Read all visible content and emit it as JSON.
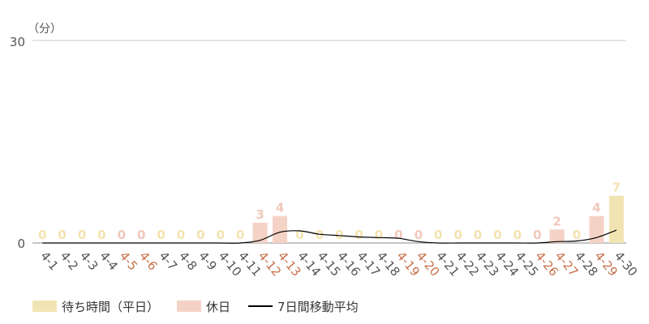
{
  "chart_data": {
    "type": "bar",
    "unit_label": "（分）",
    "ylim": [
      0,
      30
    ],
    "y_ticks": [
      "0",
      "30"
    ],
    "categories": [
      "4-1",
      "4-2",
      "4-3",
      "4-4",
      "4-5",
      "4-6",
      "4-7",
      "4-8",
      "4-9",
      "4-10",
      "4-11",
      "4-12",
      "4-13",
      "4-14",
      "4-15",
      "4-16",
      "4-17",
      "4-18",
      "4-19",
      "4-20",
      "4-21",
      "4-22",
      "4-23",
      "4-24",
      "4-25",
      "4-26",
      "4-27",
      "4-28",
      "4-29",
      "4-30"
    ],
    "holiday": [
      false,
      false,
      false,
      false,
      true,
      true,
      false,
      false,
      false,
      false,
      false,
      true,
      true,
      false,
      false,
      false,
      false,
      false,
      true,
      true,
      false,
      false,
      false,
      false,
      false,
      true,
      true,
      false,
      true,
      false
    ],
    "values": [
      0,
      0,
      0,
      0,
      0,
      0,
      0,
      0,
      0,
      0,
      0,
      3,
      4,
      0,
      0,
      0,
      0,
      0,
      0,
      0,
      0,
      0,
      0,
      0,
      0,
      0,
      2,
      0,
      4,
      7
    ],
    "moving_average": [
      0,
      0,
      0,
      0,
      0,
      0,
      0,
      0,
      0,
      0,
      0,
      0.4,
      1.6,
      1.8,
      1.3,
      1.1,
      0.9,
      0.8,
      0.7,
      0.2,
      0,
      0,
      0,
      0,
      0,
      0,
      0.2,
      0.3,
      0.8,
      1.9
    ],
    "series": [
      {
        "name": "待ち時間（平日）",
        "color": "#f1e4b3"
      },
      {
        "name": "休日",
        "color": "#f5d2c6"
      },
      {
        "name": "7日間移動平均",
        "color": "#000000"
      }
    ],
    "colors": {
      "weekday_label": "#f3e3b0",
      "holiday_label": "#f0c8bb",
      "holiday_tick": "#c8704a",
      "weekday_tick": "#555555",
      "gridline": "#cccccc"
    },
    "grid": true,
    "legend_position": "bottom-left"
  }
}
